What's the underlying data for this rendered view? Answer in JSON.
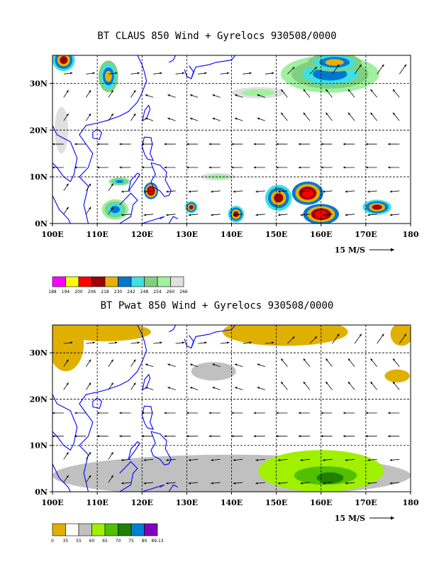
{
  "chart_data": [
    {
      "type": "heatmap",
      "title": "BT CLAUS 850 Wind + Gyrelocs 930508/0000",
      "x_ticks": [
        "100E",
        "110E",
        "120E",
        "130E",
        "140E",
        "150E",
        "160E",
        "170E",
        "180"
      ],
      "y_ticks": [
        "0N",
        "10N",
        "20N",
        "30N"
      ],
      "xlim": [
        100,
        180
      ],
      "ylim": [
        0,
        36
      ],
      "grid": true,
      "wind_reference": "15 M/S",
      "colorbar": {
        "labels": [
          "188",
          "194",
          "200",
          "206",
          "218",
          "230",
          "242",
          "248",
          "254",
          "260",
          "266"
        ],
        "colors": [
          "#ff00ff",
          "#ffff00",
          "#ff0000",
          "#a00000",
          "#e8b000",
          "#0078d0",
          "#40e0e0",
          "#80d080",
          "#a0f0a0",
          "#e0e0e0"
        ]
      },
      "regions": [
        {
          "lon": 102.5,
          "lat": 35,
          "rx": 2.5,
          "ry": 2.4,
          "level": 3
        },
        {
          "lon": 112.5,
          "lat": 31.5,
          "rx": 2.2,
          "ry": 3.4,
          "level": 4
        },
        {
          "lon": 102,
          "lat": 20,
          "rx": 1.5,
          "ry": 5,
          "level": 9
        },
        {
          "lon": 122,
          "lat": 7,
          "rx": 1.6,
          "ry": 1.8,
          "level": 2
        },
        {
          "lon": 114,
          "lat": 3,
          "rx": 3,
          "ry": 2.2,
          "level": 5
        },
        {
          "lon": 115,
          "lat": 9,
          "rx": 2.5,
          "ry": 0.9,
          "level": 5
        },
        {
          "lon": 131,
          "lat": 3.5,
          "rx": 1.4,
          "ry": 1.3,
          "level": 3
        },
        {
          "lon": 141,
          "lat": 2,
          "rx": 1.8,
          "ry": 1.8,
          "level": 3
        },
        {
          "lon": 150.5,
          "lat": 5.5,
          "rx": 3,
          "ry": 2.8,
          "level": 3
        },
        {
          "lon": 157,
          "lat": 6.5,
          "rx": 3.5,
          "ry": 2.5,
          "level": 2
        },
        {
          "lon": 160,
          "lat": 2,
          "rx": 4,
          "ry": 2.2,
          "level": 2
        },
        {
          "lon": 172.5,
          "lat": 3.5,
          "rx": 3.2,
          "ry": 1.6,
          "level": 3
        },
        {
          "lon": 162,
          "lat": 32,
          "rx": 11,
          "ry": 4,
          "level": 5
        },
        {
          "lon": 163,
          "lat": 34.5,
          "rx": 6,
          "ry": 2,
          "level": 4
        },
        {
          "lon": 146,
          "lat": 28,
          "rx": 6,
          "ry": 1.2,
          "level": 8
        },
        {
          "lon": 137,
          "lat": 10,
          "rx": 4,
          "ry": 0.8,
          "level": 8
        }
      ]
    },
    {
      "type": "heatmap",
      "title": "BT Pwat 850 Wind + Gyrelocs 930508/0000",
      "x_ticks": [
        "100E",
        "110E",
        "120E",
        "130E",
        "140E",
        "150E",
        "160E",
        "170E",
        "180"
      ],
      "y_ticks": [
        "0N",
        "10N",
        "20N",
        "30N"
      ],
      "xlim": [
        100,
        180
      ],
      "ylim": [
        0,
        36
      ],
      "grid": true,
      "wind_reference": "15 M/S",
      "colorbar": {
        "labels": [
          "0",
          "35",
          "55",
          "60",
          "65",
          "70",
          "75",
          "80",
          "89.13"
        ],
        "colors": [
          "#e0b000",
          "#ffffff",
          "#c0c0c0",
          "#a0f000",
          "#50c000",
          "#208000",
          "#0080d0",
          "#8000c0"
        ]
      },
      "regions": [
        {
          "lon": 152,
          "lat": 34.5,
          "rx": 14,
          "ry": 3,
          "level": 0
        },
        {
          "lon": 103,
          "lat": 32,
          "rx": 4,
          "ry": 6,
          "level": 0
        },
        {
          "lon": 112,
          "lat": 34.5,
          "rx": 10,
          "ry": 2,
          "level": 0
        },
        {
          "lon": 178,
          "lat": 34,
          "rx": 2.5,
          "ry": 2.5,
          "level": 0
        },
        {
          "lon": 177,
          "lat": 25,
          "rx": 2.8,
          "ry": 1.4,
          "level": 0
        },
        {
          "lon": 136,
          "lat": 26,
          "rx": 5,
          "ry": 2,
          "level": 2
        },
        {
          "lon": 140,
          "lat": 3.5,
          "rx": 40,
          "ry": 4.5,
          "level": 2
        },
        {
          "lon": 160,
          "lat": 4.5,
          "rx": 14,
          "ry": 4.5,
          "level": 3
        },
        {
          "lon": 161,
          "lat": 3.5,
          "rx": 7,
          "ry": 2,
          "level": 4
        },
        {
          "lon": 162,
          "lat": 3,
          "rx": 3,
          "ry": 1.2,
          "level": 5
        }
      ]
    }
  ]
}
